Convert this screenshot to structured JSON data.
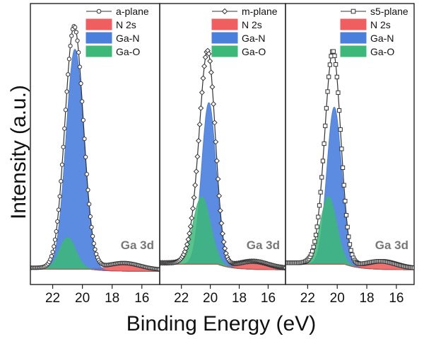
{
  "chart_data": {
    "type": "line",
    "xlabel": "Binding Energy (eV)",
    "ylabel": "Intensity (a.u.)",
    "xlim": [
      23.5,
      14.8
    ],
    "ylim": [
      0,
      1.12
    ],
    "x_ticks": [
      22,
      20,
      18,
      16
    ],
    "grid": false,
    "legend_position": "top-right",
    "colors": {
      "n2s": "#ef5f5f",
      "gan": "#4a7fde",
      "gao": "#3cb878",
      "data": "#444444"
    },
    "panels": [
      {
        "label": "Ga 3d",
        "legend": [
          "a-plane",
          "N 2s",
          "Ga-N",
          "Ga-O"
        ],
        "marker": "circle",
        "series": [
          {
            "name": "N 2s",
            "type": "gaussian",
            "center": 17.2,
            "sigma": 1.1,
            "height": 0.03
          },
          {
            "name": "Ga-N",
            "type": "gaussian",
            "center": 20.5,
            "sigma": 0.6,
            "height": 0.98
          },
          {
            "name": "Ga-O",
            "type": "gaussian",
            "center": 21.0,
            "sigma": 0.55,
            "height": 0.14
          }
        ],
        "baseline": 0.02,
        "background": {
          "value": 0.005,
          "peak": 0.01,
          "center": 19.5
        }
      },
      {
        "label": "Ga 3d",
        "legend": [
          "m-plane",
          "N 2s",
          "Ga-N",
          "Ga-O"
        ],
        "marker": "diamond",
        "series": [
          {
            "name": "N 2s",
            "type": "gaussian",
            "center": 17.0,
            "sigma": 1.0,
            "height": 0.03
          },
          {
            "name": "Ga-N",
            "type": "gaussian",
            "center": 20.1,
            "sigma": 0.5,
            "height": 0.72
          },
          {
            "name": "Ga-O",
            "type": "gaussian",
            "center": 20.6,
            "sigma": 0.6,
            "height": 0.3
          }
        ],
        "baseline": 0.02,
        "background": {
          "value": 0.012,
          "peak": 0.025,
          "center": 19.5
        }
      },
      {
        "label": "Ga 3d",
        "legend": [
          "s5-plane",
          "N 2s",
          "Ga-N",
          "Ga-O"
        ],
        "marker": "square",
        "series": [
          {
            "name": "N 2s",
            "type": "gaussian",
            "center": 17.0,
            "sigma": 1.0,
            "height": 0.03
          },
          {
            "name": "Ga-N",
            "type": "gaussian",
            "center": 20.2,
            "sigma": 0.5,
            "height": 0.7
          },
          {
            "name": "Ga-O",
            "type": "gaussian",
            "center": 20.6,
            "sigma": 0.55,
            "height": 0.3
          }
        ],
        "baseline": 0.02,
        "background": {
          "value": 0.012,
          "peak": 0.025,
          "center": 19.5
        }
      }
    ]
  }
}
